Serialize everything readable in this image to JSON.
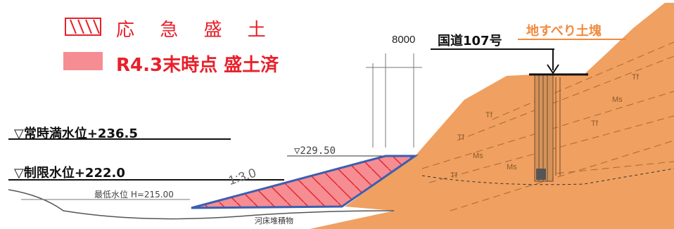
{
  "legend": {
    "emergency_fill": "応 急 盛 土",
    "completed_fill": "R4.3末時点 盛土済"
  },
  "labels": {
    "dimension": "8000",
    "national_road": "国道107号",
    "landslide_block": "地すべり土塊",
    "normal_full_water_level": "▽常時満水位+236.5",
    "fill_crest_level": "▽229.50",
    "restricted_water_level": "▽制限水位+222.0",
    "minimum_water_level": "最低水位  H=215.00",
    "slope_ratio": "1:3.0",
    "riverbed_sediment": "河床堆積物"
  },
  "geology": {
    "tf": "Tf",
    "ms": "Ms"
  },
  "colors": {
    "landslide": "#f0a060",
    "fill_red": "#f58d93",
    "red": "#e8202a",
    "outline_blue": "#3a5fb0",
    "ground_line": "#555555"
  }
}
